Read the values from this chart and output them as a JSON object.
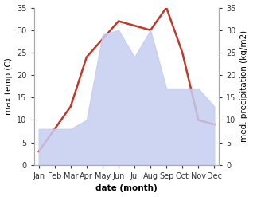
{
  "months": [
    "Jan",
    "Feb",
    "Mar",
    "Apr",
    "May",
    "Jun",
    "Jul",
    "Aug",
    "Sep",
    "Oct",
    "Nov",
    "Dec"
  ],
  "temperature": [
    3,
    8,
    13,
    24,
    28,
    32,
    31,
    30,
    35,
    25,
    10,
    9
  ],
  "precipitation": [
    8,
    8,
    8,
    10,
    29,
    30,
    24,
    30,
    17,
    17,
    17,
    13
  ],
  "temp_color": "#c0392b",
  "precip_fill_color": "#c5cef0",
  "precip_fill_alpha": 0.85,
  "ylim": [
    0,
    35
  ],
  "xlabel": "date (month)",
  "ylabel_left": "max temp (C)",
  "ylabel_right": "med. precipitation (kg/m2)",
  "yticks": [
    0,
    5,
    10,
    15,
    20,
    25,
    30,
    35
  ],
  "bg_color": "#ffffff",
  "plot_bg": "#ffffff",
  "temp_linewidth": 1.8,
  "title_fontsize": 8,
  "label_fontsize": 7.5,
  "tick_fontsize": 7
}
